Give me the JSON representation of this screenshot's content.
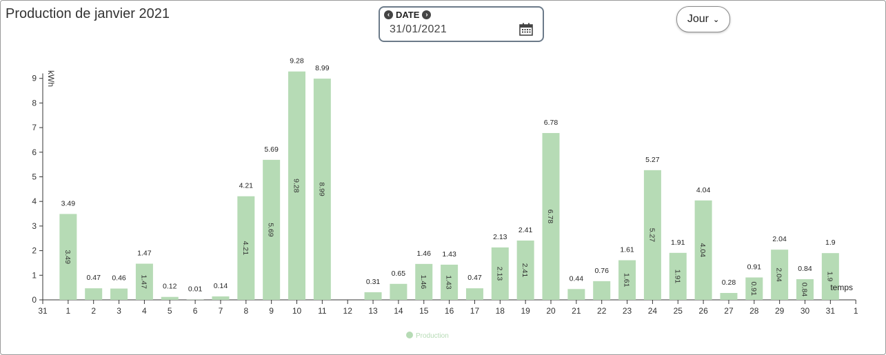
{
  "header": {
    "title": "Production de janvier 2021"
  },
  "date_picker": {
    "label": "DATE",
    "prev_icon": "chevron-left-circle-icon",
    "next_icon": "chevron-right-circle-icon",
    "value": "31/01/2021",
    "calendar_icon": "calendar-icon"
  },
  "period_select": {
    "value": "Jour",
    "icon": "chevron-down-icon"
  },
  "chart_data": {
    "type": "bar",
    "title": "",
    "ylabel": "kWh",
    "xlabel": "temps",
    "ylim": [
      0,
      9.2
    ],
    "yticks": [
      0,
      1,
      2,
      3,
      4,
      5,
      6,
      7,
      8,
      9
    ],
    "xtick_labels": [
      "31",
      "1",
      "2",
      "3",
      "4",
      "5",
      "6",
      "7",
      "8",
      "9",
      "10",
      "11",
      "12",
      "13",
      "14",
      "15",
      "16",
      "17",
      "18",
      "19",
      "20",
      "21",
      "22",
      "23",
      "24",
      "25",
      "26",
      "27",
      "28",
      "29",
      "30",
      "31",
      "1"
    ],
    "categories": [
      "1",
      "2",
      "3",
      "4",
      "5",
      "6",
      "7",
      "8",
      "9",
      "10",
      "11",
      "12",
      "13",
      "14",
      "15",
      "16",
      "17",
      "18",
      "19",
      "20",
      "21",
      "22",
      "23",
      "24",
      "25",
      "26",
      "27",
      "28",
      "29",
      "30",
      "31"
    ],
    "series": [
      {
        "name": "Production",
        "color": "#b6dbb5",
        "values": [
          3.49,
          0.47,
          0.46,
          1.47,
          0.12,
          0.01,
          0.14,
          4.21,
          5.69,
          9.28,
          8.99,
          null,
          0.31,
          0.65,
          1.46,
          1.43,
          0.47,
          2.13,
          2.41,
          6.78,
          0.44,
          0.76,
          1.61,
          5.27,
          1.91,
          4.04,
          0.28,
          0.91,
          2.04,
          0.84,
          1.9
        ],
        "inner_labels": [
          "3.49",
          null,
          null,
          "1.47",
          null,
          null,
          null,
          "4.21",
          "5.69",
          "9.28",
          "8.99",
          null,
          null,
          null,
          "1.46",
          "1.43",
          null,
          "2.13",
          "2.41",
          "6.78",
          null,
          null,
          "1.61",
          "5.27",
          "1.91",
          "4.04",
          null,
          "0.91",
          "2.04",
          "0.84",
          "1.9"
        ]
      }
    ],
    "legend": {
      "position": "bottom-center",
      "color": "#b6dbb5"
    },
    "grid": false
  }
}
